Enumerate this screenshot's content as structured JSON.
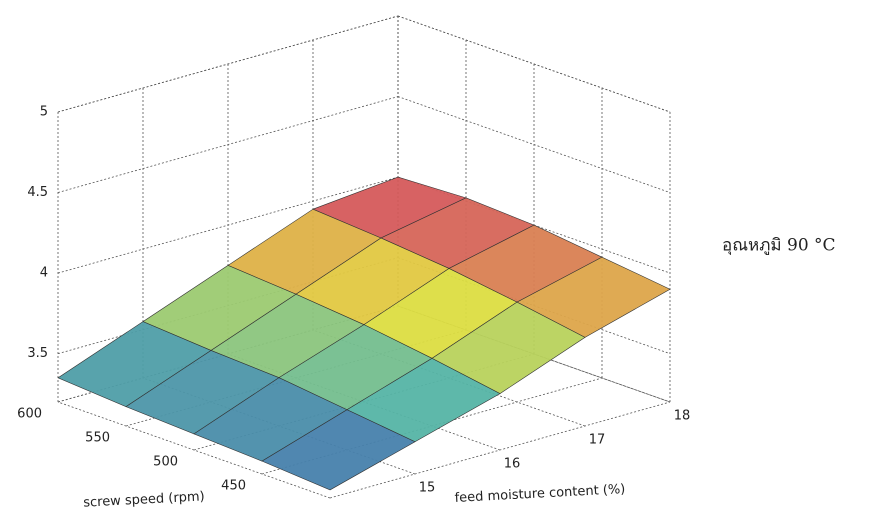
{
  "chart_data": {
    "type": "surface",
    "xlabel": "feed moisture content (%)",
    "ylabel": "screw speed (rpm)",
    "annotation": "อุณหภูมิ 90 °C",
    "x": [
      14,
      15,
      16,
      17,
      18
    ],
    "y": [
      400,
      450,
      500,
      550,
      600
    ],
    "z": [
      [
        3.25,
        3.4,
        3.55,
        3.75,
        3.9
      ],
      [
        3.28,
        3.45,
        3.62,
        3.82,
        3.95
      ],
      [
        3.3,
        3.5,
        3.68,
        3.88,
        4.0
      ],
      [
        3.32,
        3.52,
        3.72,
        3.92,
        4.02
      ],
      [
        3.35,
        3.55,
        3.75,
        3.95,
        4.0
      ]
    ],
    "xlim": [
      14,
      18
    ],
    "xticks": [
      15,
      16,
      17,
      18
    ],
    "ylim": [
      400,
      600
    ],
    "yticks": [
      450,
      500,
      550,
      600
    ],
    "zlim": [
      3.2,
      5
    ],
    "zticks": [
      3.5,
      4,
      4.5,
      5
    ],
    "grid": true,
    "colormap": [
      "#3f63b0",
      "#55b5a5",
      "#e3df3c",
      "#d23c62"
    ]
  }
}
